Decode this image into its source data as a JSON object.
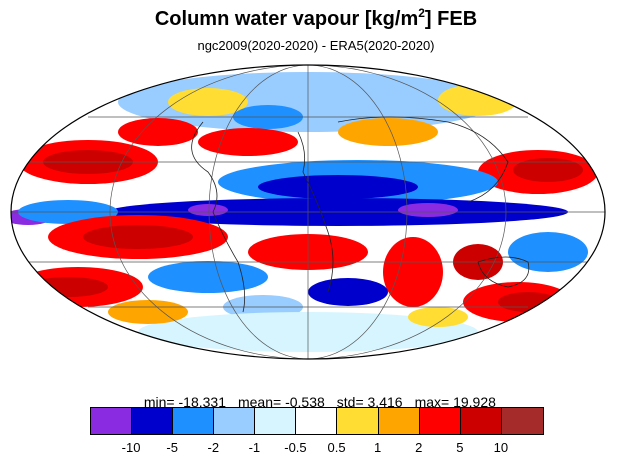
{
  "title": {
    "main": "Column water vapour [kg/m",
    "sup": "2",
    "suffix": "] FEB"
  },
  "subtitle": "ngc2009(2020-2020) - ERA5(2020-2020)",
  "stats": {
    "min": "min= -18.331",
    "mean": "mean= -0.538",
    "std": "std= 3.416",
    "max": "max= 19.928"
  },
  "colorbar": {
    "colors": [
      "#8a2be2",
      "#0000cd",
      "#1e90ff",
      "#99ccff",
      "#d6f5ff",
      "#ffffff",
      "#ffdd33",
      "#ffa500",
      "#ff0000",
      "#cd0000",
      "#a52a2a"
    ],
    "labels": [
      "-10",
      "-5",
      "-2",
      "-1",
      "-0.5",
      "0.5",
      "1",
      "2",
      "5",
      "10"
    ]
  },
  "map": {
    "projection": "Mollweide",
    "field": "difference"
  }
}
